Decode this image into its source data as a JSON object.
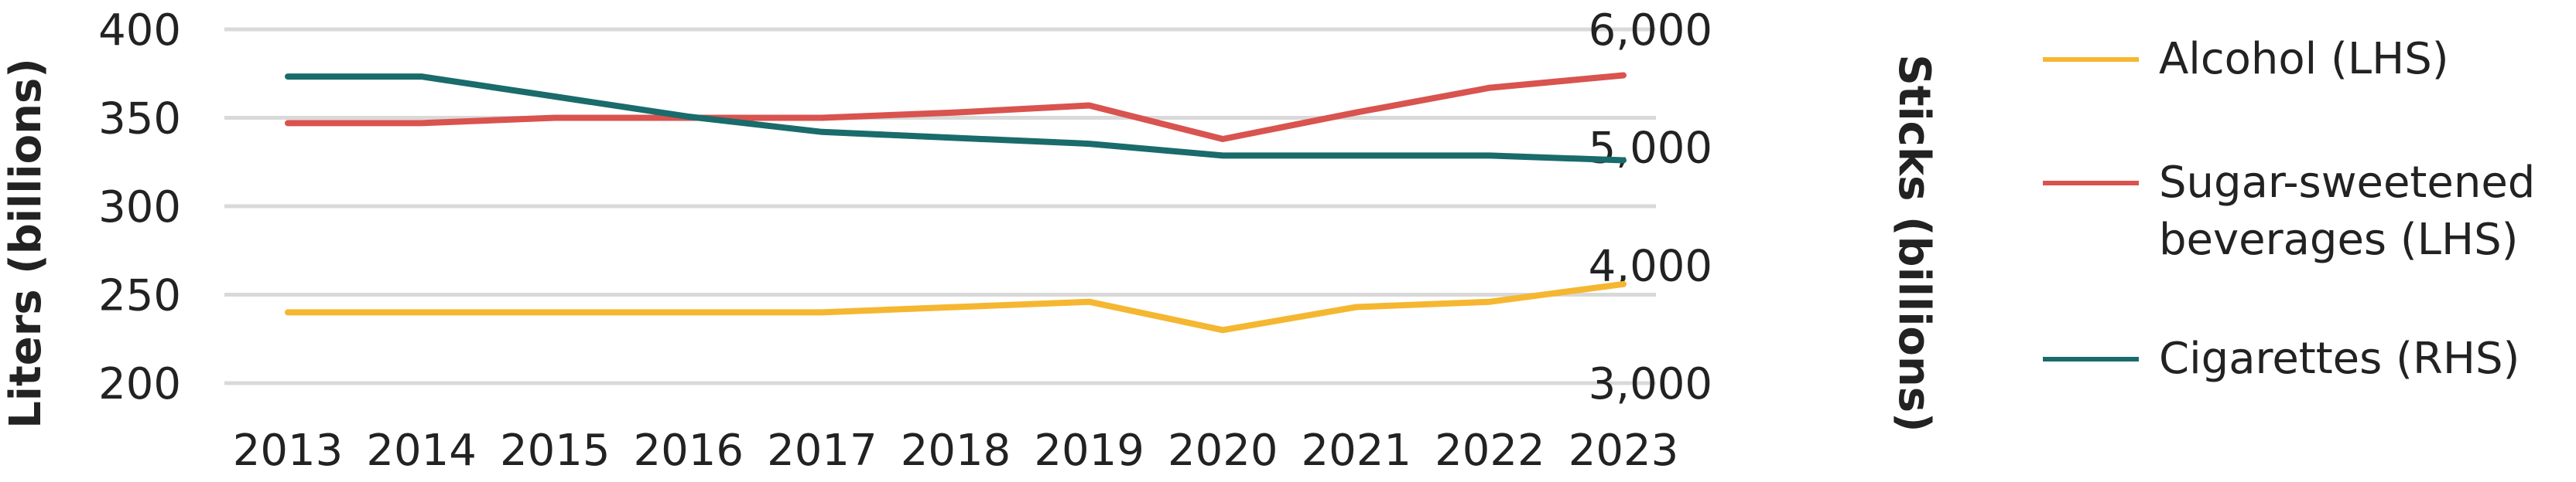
{
  "chart_data": {
    "type": "line",
    "x": [
      2013,
      2014,
      2015,
      2016,
      2017,
      2018,
      2019,
      2020,
      2021,
      2022,
      2023
    ],
    "x_tick_labels": [
      "2013",
      "2014",
      "2015",
      "2016",
      "2017",
      "2018",
      "2019",
      "2020",
      "2021",
      "2022",
      "2023"
    ],
    "ylabel_left": "Liters (billions)",
    "ylabel_right": "Sticks (billions)",
    "ylim_left": [
      200,
      400
    ],
    "ylim_right": [
      3000,
      6000
    ],
    "yticks_left": [
      200,
      250,
      300,
      350,
      400
    ],
    "yticks_right": [
      3000,
      4000,
      5000,
      6000
    ],
    "ytick_labels_left": [
      "200",
      "250",
      "300",
      "350",
      "400"
    ],
    "ytick_labels_right": [
      "3,000",
      "4,000",
      "5,000",
      "6,000"
    ],
    "grid": true,
    "legend_position": "right",
    "series": [
      {
        "name": "Alcohol (LHS)",
        "axis": "left",
        "color": "#f5b731",
        "values": [
          240,
          240,
          240,
          240,
          240,
          243,
          246,
          230,
          243,
          246,
          256
        ]
      },
      {
        "name": "Sugar-sweetened beverages (LHS)",
        "axis": "left",
        "color": "#d9534f",
        "values": [
          347,
          347,
          350,
          350,
          350,
          353,
          357,
          338,
          353,
          367,
          374
        ]
      },
      {
        "name": "Cigarettes (RHS)",
        "axis": "right",
        "color": "#1a6b6b",
        "values": [
          5600,
          5600,
          5430,
          5260,
          5130,
          5080,
          5030,
          4930,
          4930,
          4930,
          4890
        ]
      }
    ]
  }
}
